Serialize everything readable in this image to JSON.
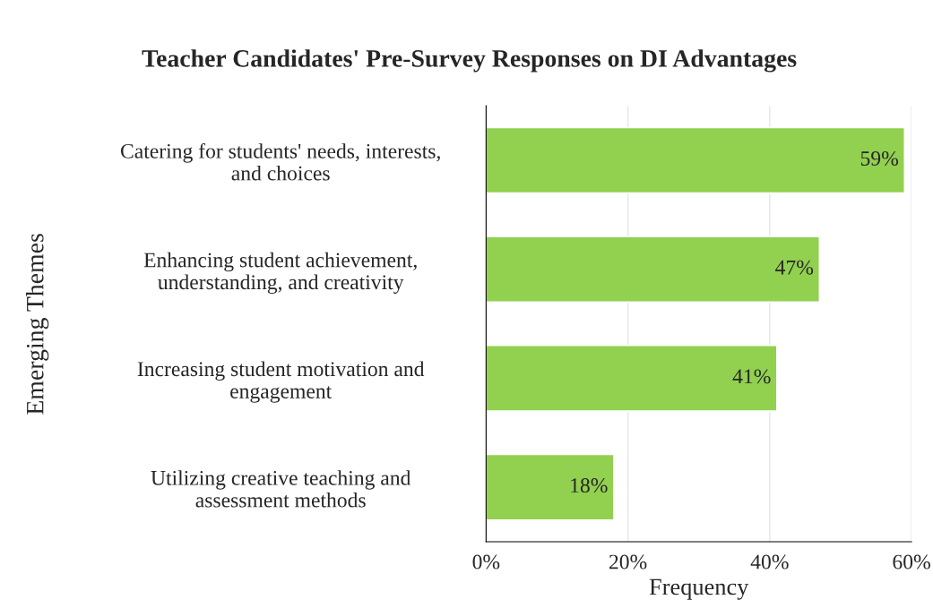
{
  "chart_data": {
    "type": "bar",
    "orientation": "horizontal",
    "title": "Teacher Candidates' Pre-Survey Responses on DI Advantages",
    "xlabel": "Frequency",
    "ylabel": "Emerging Themes",
    "categories": [
      "Catering for students' needs, interests,\nand choices",
      "Enhancing student achievement,\nunderstanding, and creativity",
      "Increasing student motivation and\nengagement",
      "Utilizing creative teaching and\nassessment methods"
    ],
    "values": [
      59,
      47,
      41,
      18
    ],
    "value_labels": [
      "59%",
      "47%",
      "41%",
      "18%"
    ],
    "color": "#92d050",
    "xlim": [
      0,
      60
    ],
    "xticks": [
      {
        "value": 0,
        "label": "0%"
      },
      {
        "value": 20,
        "label": "20%"
      },
      {
        "value": 40,
        "label": "40%"
      },
      {
        "value": 60,
        "label": "60%"
      }
    ],
    "grid": "x",
    "legend": false
  }
}
